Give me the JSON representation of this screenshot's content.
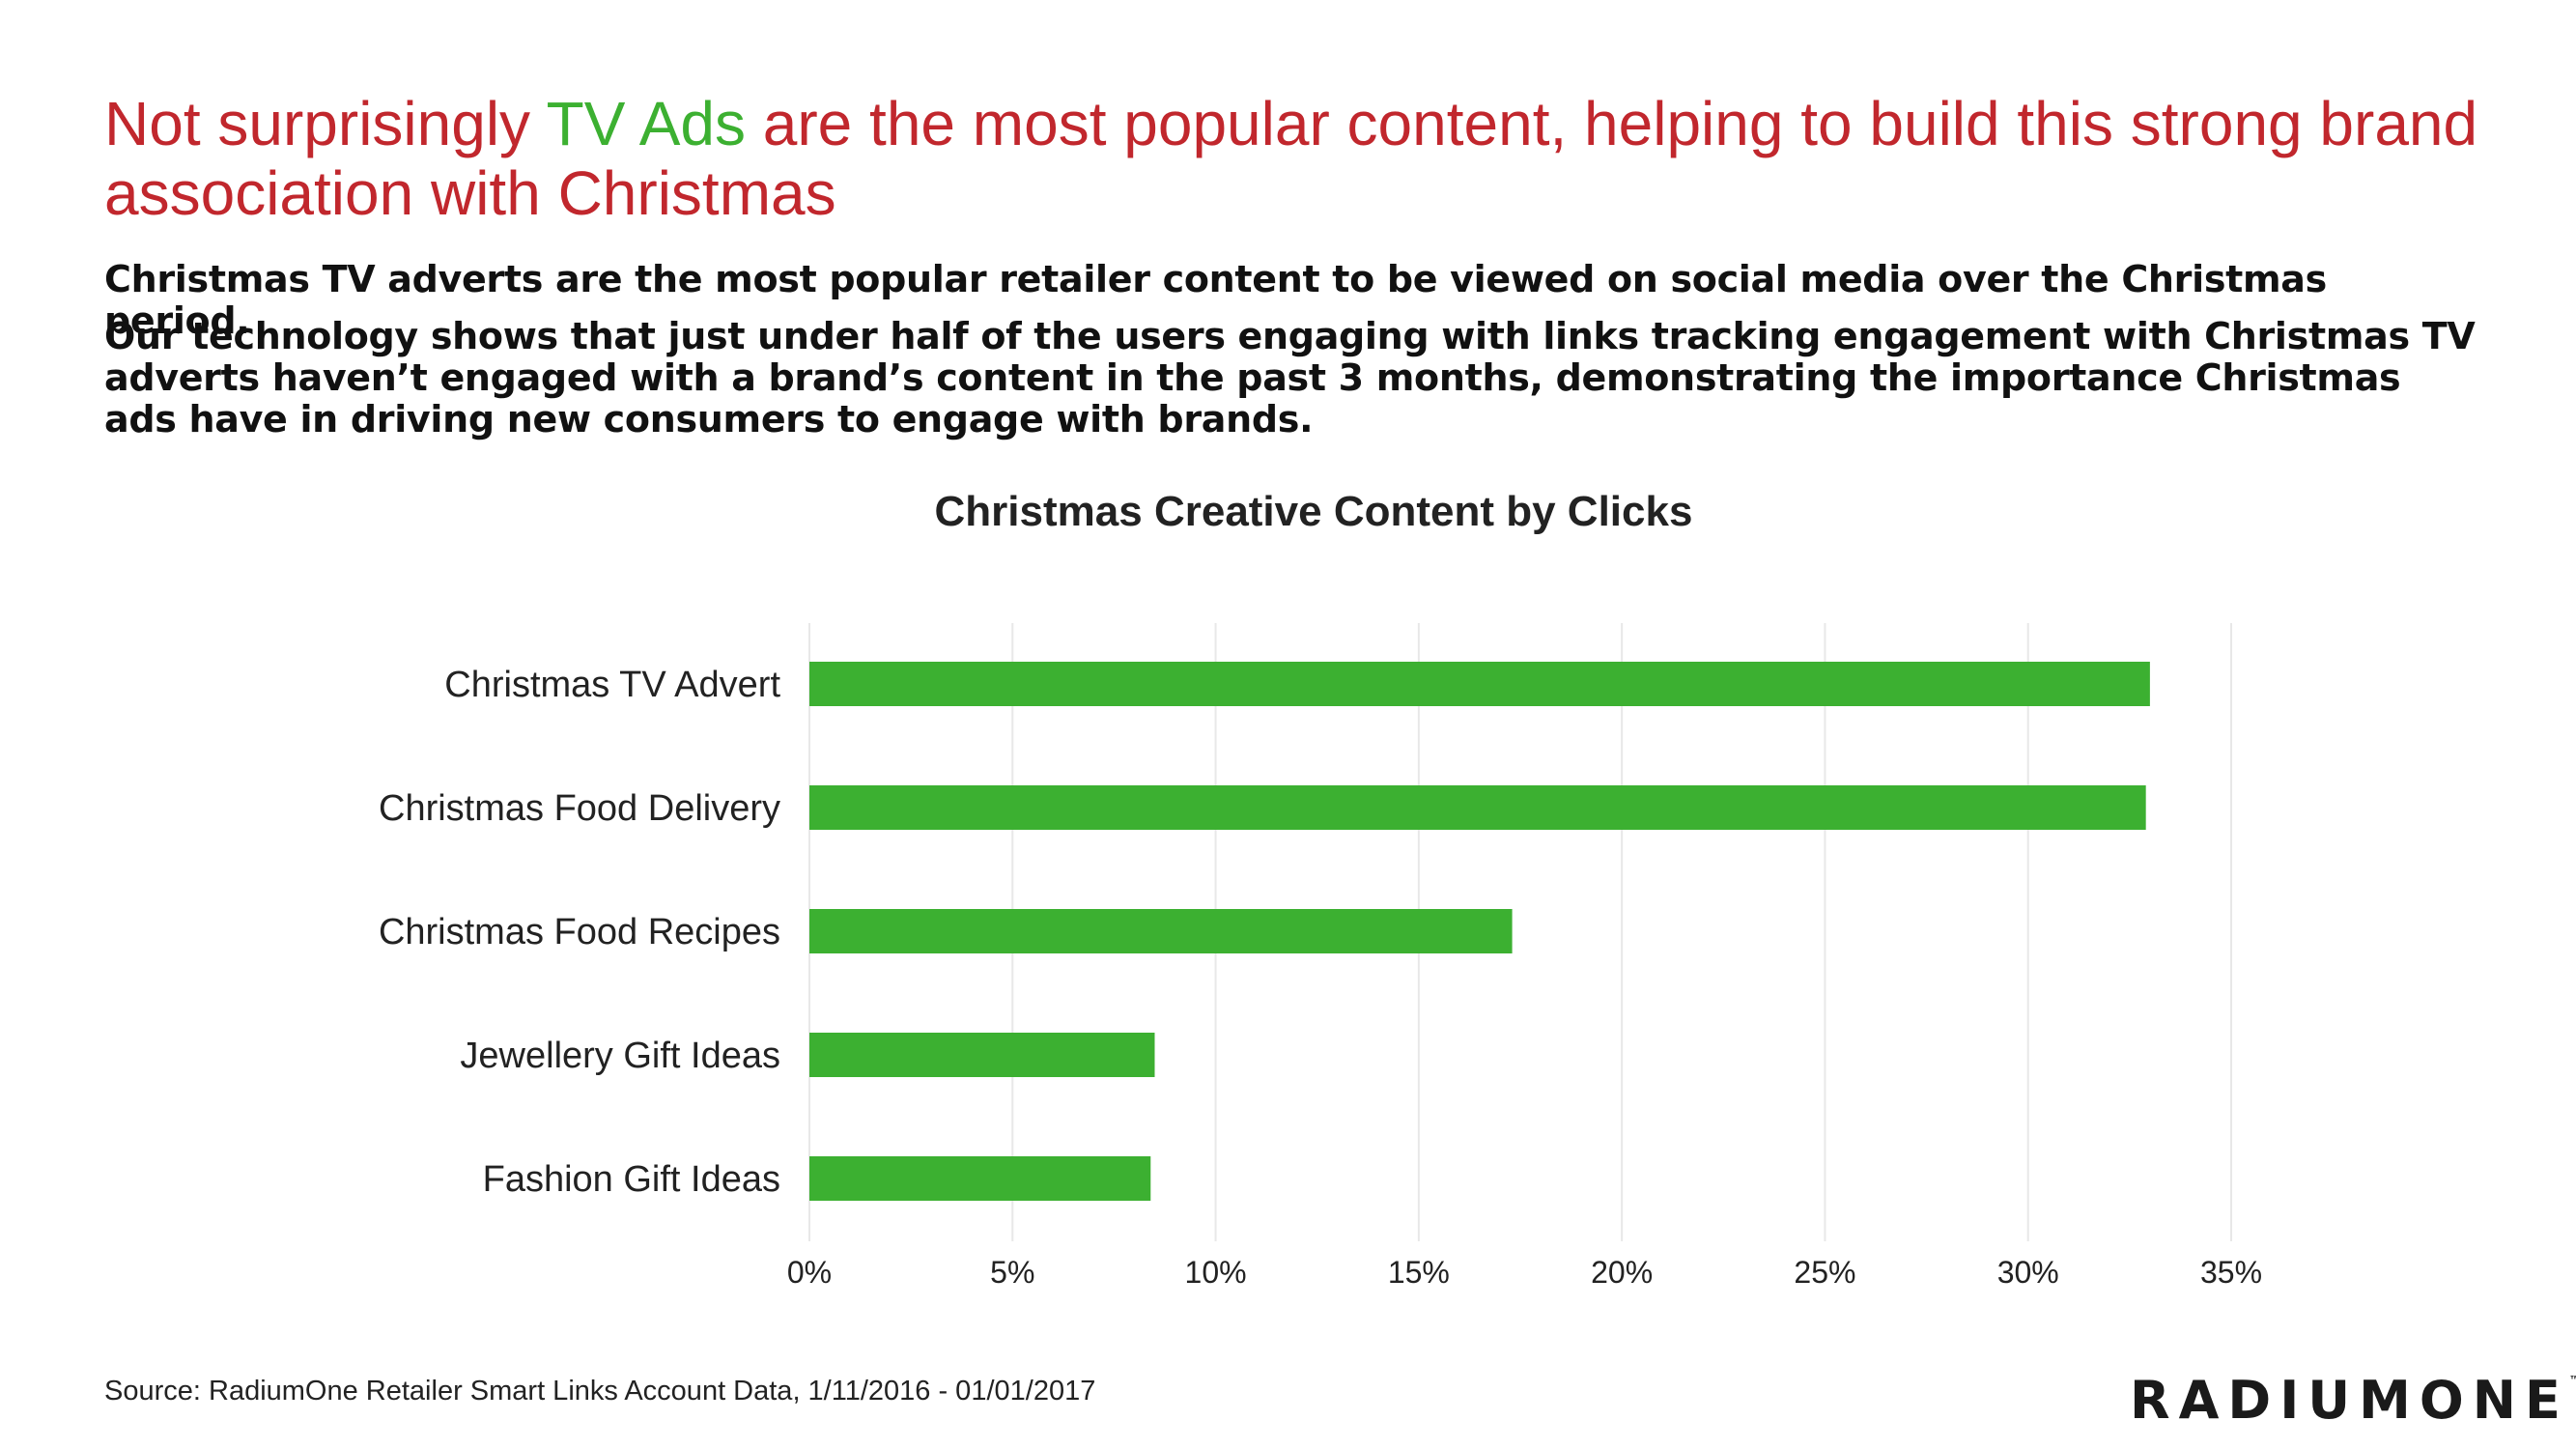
{
  "header": {
    "title_part1": "Not surprisingly ",
    "title_highlight": "TV Ads",
    "title_part2": " are the most popular content, helping to build this strong brand association with Christmas",
    "paragraph1": "Christmas TV adverts are the most popular retailer content to be viewed on social media over the Christmas period.",
    "paragraph2": "Our technology shows that just under half of the users engaging with links tracking engagement with Christmas TV adverts haven’t engaged with a brand’s content in the past 3 months, demonstrating the importance Christmas ads have in driving new consumers to engage with brands."
  },
  "colors": {
    "title": "#c1272d",
    "highlight": "#3cb031",
    "bar": "#3cb031",
    "grid": "#e8e8e8"
  },
  "chart_data": {
    "type": "bar",
    "orientation": "horizontal",
    "title": "Christmas Creative Content by Clicks",
    "categories": [
      "Christmas TV Advert",
      "Christmas Food Delivery",
      "Christmas Food Recipes",
      "Jewellery Gift Ideas",
      "Fashion Gift Ideas"
    ],
    "values": [
      33.0,
      32.9,
      17.3,
      8.5,
      8.4
    ],
    "xlim": [
      0,
      35
    ],
    "xticks": [
      0,
      5,
      10,
      15,
      20,
      25,
      30,
      35
    ],
    "xtick_labels": [
      "0%",
      "5%",
      "10%",
      "15%",
      "20%",
      "25%",
      "30%",
      "35%"
    ],
    "grid": "vertical",
    "legend": "none"
  },
  "footer": {
    "source": "Source: RadiumOne Retailer Smart Links Account Data, 1/11/2016 - 01/01/2017",
    "logo_text": "RADIUMONE",
    "logo_mark": "™"
  }
}
